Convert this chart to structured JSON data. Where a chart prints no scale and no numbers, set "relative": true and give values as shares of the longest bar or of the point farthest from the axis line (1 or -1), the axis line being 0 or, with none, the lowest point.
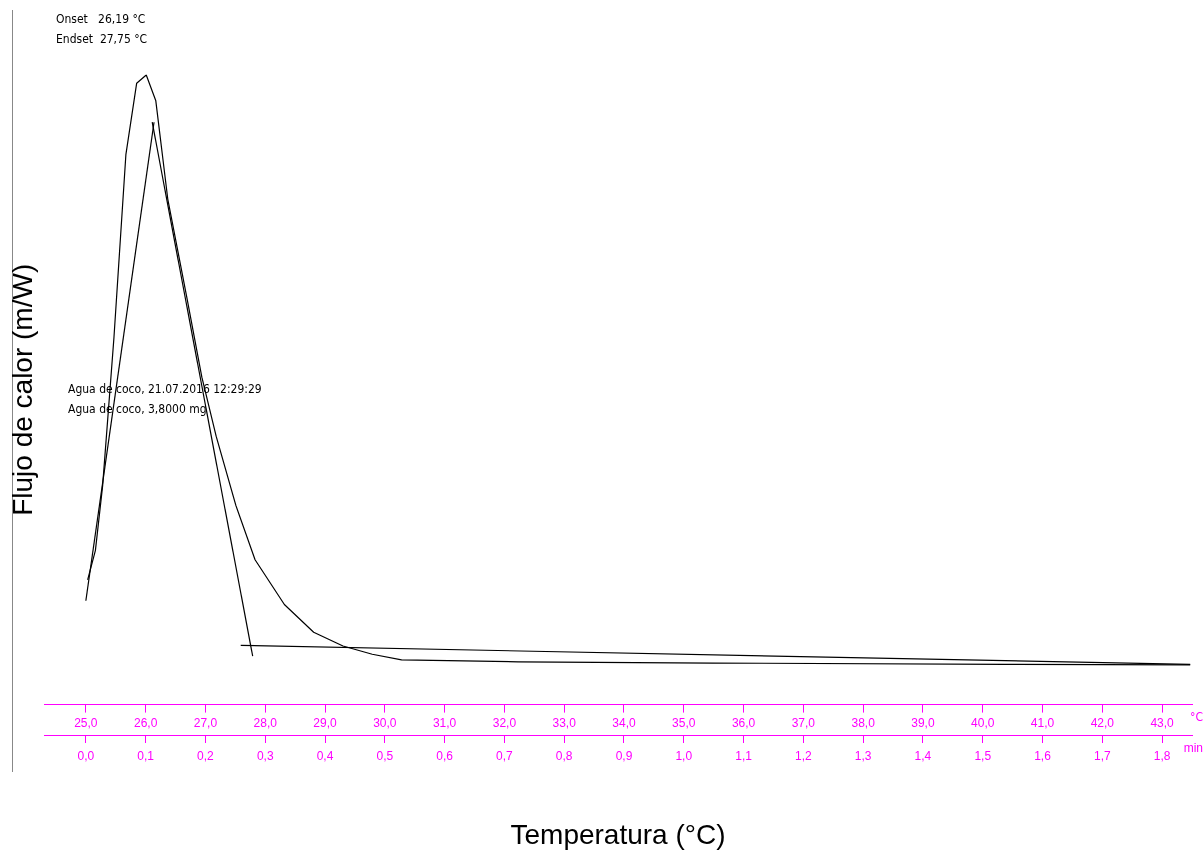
{
  "chart_data": {
    "type": "line",
    "xlabel": "Temperatura (°C)",
    "ylabel": "Flujo de calor (m/W)",
    "relative": true,
    "legend": false,
    "grid": false,
    "marker": "none",
    "line_style": "solid",
    "xlim": [
      24.3,
      43.5
    ],
    "xticks": [
      {
        "value": 25,
        "label": "25,0"
      },
      {
        "value": 26,
        "label": "26,0"
      },
      {
        "value": 27,
        "label": "27,0"
      },
      {
        "value": 28,
        "label": "28,0"
      },
      {
        "value": 29,
        "label": "29,0"
      },
      {
        "value": 30,
        "label": "30,0"
      },
      {
        "value": 31,
        "label": "31,0"
      },
      {
        "value": 32,
        "label": "32,0"
      },
      {
        "value": 33,
        "label": "33,0"
      },
      {
        "value": 34,
        "label": "34,0"
      },
      {
        "value": 35,
        "label": "35,0"
      },
      {
        "value": 36,
        "label": "36,0"
      },
      {
        "value": 37,
        "label": "37,0"
      },
      {
        "value": 38,
        "label": "38,0"
      },
      {
        "value": 39,
        "label": "39,0"
      },
      {
        "value": 40,
        "label": "40,0"
      },
      {
        "value": 41,
        "label": "41,0"
      },
      {
        "value": 42,
        "label": "42,0"
      },
      {
        "value": 43,
        "label": "43,0"
      }
    ],
    "x2lim": [
      -0.07,
      1.85
    ],
    "x2ticks": [
      {
        "value": 0,
        "label": "0,0"
      },
      {
        "value": 0.1,
        "label": "0,1"
      },
      {
        "value": 0.2,
        "label": "0,2"
      },
      {
        "value": 0.3,
        "label": "0,3"
      },
      {
        "value": 0.4,
        "label": "0,4"
      },
      {
        "value": 0.5,
        "label": "0,5"
      },
      {
        "value": 0.6,
        "label": "0,6"
      },
      {
        "value": 0.7,
        "label": "0,7"
      },
      {
        "value": 0.8,
        "label": "0,8"
      },
      {
        "value": 0.9,
        "label": "0,9"
      },
      {
        "value": 1.0,
        "label": "1,0"
      },
      {
        "value": 1.1,
        "label": "1,1"
      },
      {
        "value": 1.2,
        "label": "1,2"
      },
      {
        "value": 1.3,
        "label": "1,3"
      },
      {
        "value": 1.4,
        "label": "1,4"
      },
      {
        "value": 1.5,
        "label": "1,5"
      },
      {
        "value": 1.6,
        "label": "1,6"
      },
      {
        "value": 1.7,
        "label": "1,7"
      },
      {
        "value": 1.8,
        "label": "1,8"
      }
    ],
    "x2label": "min",
    "annotations": [
      "Onset   26,19 °C",
      "Endset  27,75 °C",
      "Agua de coco, 21.07.2016 12:29:29",
      "Agua de coco, 3,8000 mg",
      "°C"
    ],
    "series": [
      {
        "color": "#000000",
        "x": [
          25.03,
          25.16,
          25.28,
          25.47,
          25.67,
          25.85,
          26.01,
          26.17,
          26.37,
          26.69,
          26.94,
          27.18,
          27.51,
          27.83,
          28.32,
          28.81,
          29.3,
          29.79,
          30.28,
          32.23,
          35.49,
          40.37,
          43.47
        ],
        "values": [
          0.198,
          0.245,
          0.347,
          0.583,
          0.874,
          0.987,
          1.0,
          0.959,
          0.803,
          0.646,
          0.52,
          0.426,
          0.316,
          0.23,
          0.159,
          0.115,
          0.093,
          0.08,
          0.071,
          0.068,
          0.066,
          0.064,
          0.063
        ]
      },
      {
        "color": "#000000",
        "x": [
          25.0,
          26.14
        ],
        "values": [
          0.165,
          0.925
        ]
      },
      {
        "color": "#000000",
        "x": [
          26.11,
          27.79
        ],
        "values": [
          0.925,
          0.077
        ]
      },
      {
        "color": "#000000",
        "x": [
          27.59,
          43.47
        ],
        "values": [
          0.094,
          0.064
        ]
      }
    ]
  }
}
